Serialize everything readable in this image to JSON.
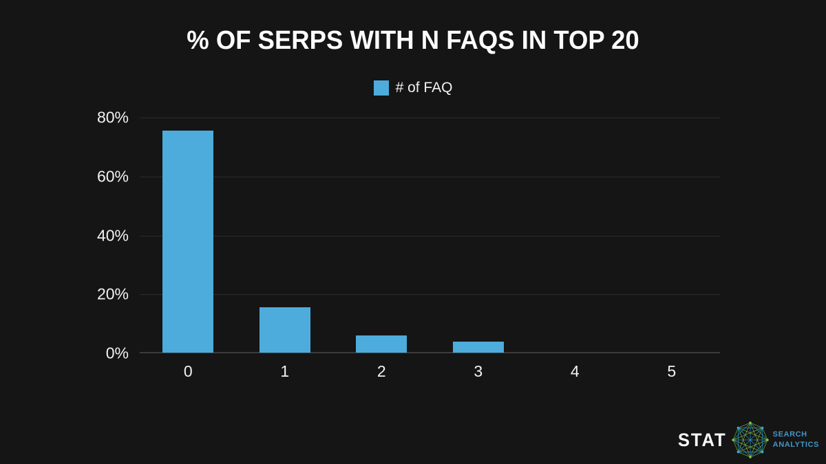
{
  "title": "% OF SERPS WITH N FAQS IN TOP 20",
  "legend": {
    "label": "# of FAQ"
  },
  "colors": {
    "background": "#151515",
    "bar": "#4dacdb",
    "gridline": "#2c2c2c",
    "axisline": "#3c3c3c",
    "text": "#f2f2f2",
    "logo_blue": "#4496c4",
    "logo_green": "#8cc63f",
    "logo_cyan": "#29abe2"
  },
  "chart_data": {
    "type": "bar",
    "title": "% OF SERPS WITH N FAQS IN TOP 20",
    "series_name": "# of FAQ",
    "categories": [
      "0",
      "1",
      "2",
      "3",
      "4",
      "5"
    ],
    "values": [
      75.4,
      15.3,
      5.9,
      3.7,
      0,
      0
    ],
    "xlabel": "",
    "ylabel": "",
    "ylim": [
      0,
      80
    ],
    "y_ticks": [
      "0%",
      "20%",
      "40%",
      "60%",
      "80%"
    ],
    "grid": true,
    "legend_position": "top-center",
    "bar_color": "#4dacdb"
  },
  "logo": {
    "brand": "STAT",
    "line1": "SEARCH",
    "line2": "ANALYTICS"
  }
}
